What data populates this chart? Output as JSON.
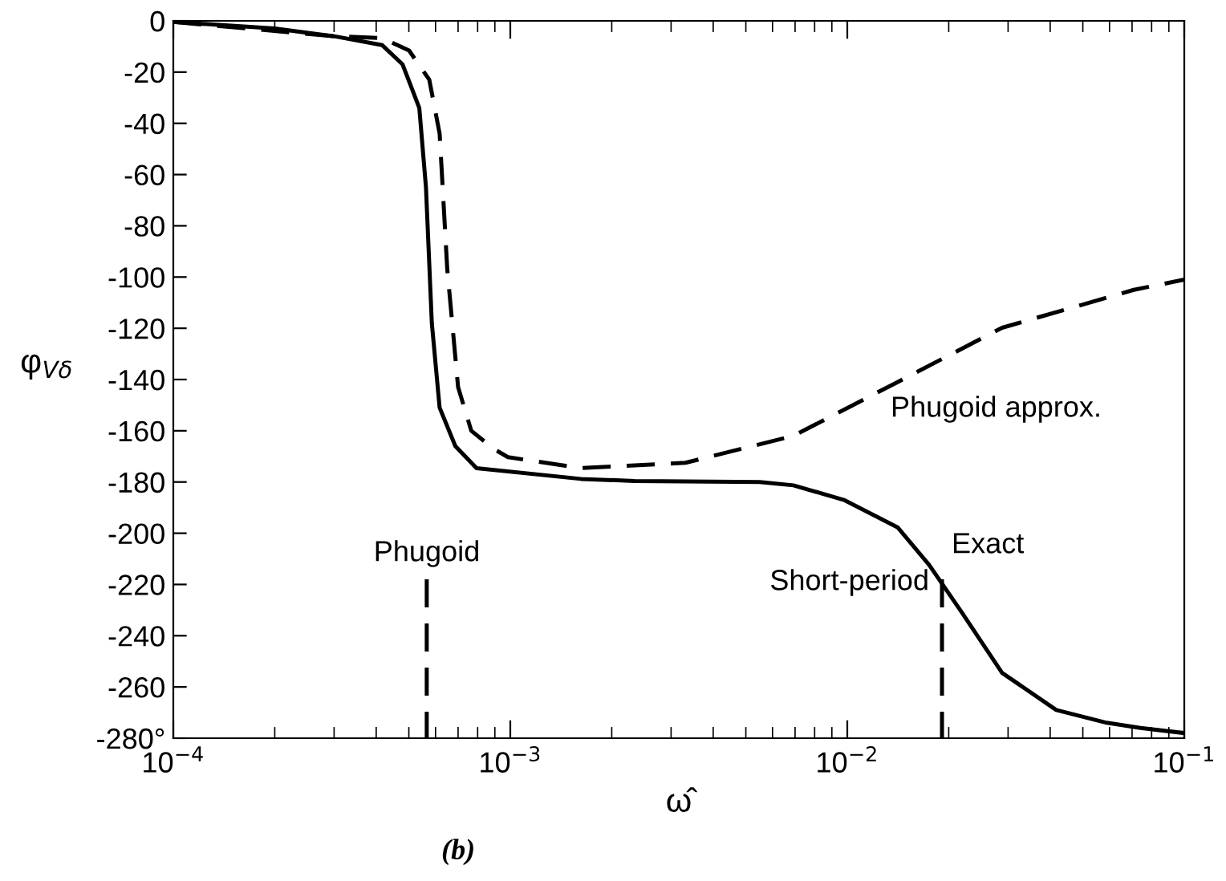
{
  "chart_data": {
    "type": "line",
    "xlabel": "ω̂",
    "ylabel": "φ$_{Vδ}$",
    "log": "x",
    "xlim": [
      0.0001,
      0.1
    ],
    "ylim": [
      -280,
      0
    ],
    "xticks": [
      {
        "value": 0.0001,
        "label": "10$^{−4}$"
      },
      {
        "value": 0.001,
        "label": "10$^{−3}$"
      },
      {
        "value": 0.01,
        "label": "10$^{−2}$"
      },
      {
        "value": 0.1,
        "label": "10$^{−1}$"
      }
    ],
    "yticks": [
      0,
      -20,
      -40,
      -60,
      -80,
      -100,
      -120,
      -140,
      -160,
      -180,
      -200,
      -220,
      -240,
      -260,
      {
        "value": -280,
        "label": "-280°"
      }
    ],
    "grid": false,
    "legend": false,
    "series": [
      {
        "color": "#000000",
        "line_style": "solid",
        "x": [
          0.0001,
          0.0002,
          0.0003,
          0.000417,
          0.000479,
          0.000537,
          0.000562,
          0.000585,
          0.000617,
          0.000687,
          0.000794,
          0.00162,
          0.00234,
          0.0055,
          0.00692,
          0.00977,
          0.0141,
          0.0175,
          0.0219,
          0.0288,
          0.0417,
          0.0589,
          0.0741,
          0.1
        ],
        "values": [
          -0.4,
          -3,
          -6,
          -9.5,
          -17,
          -34,
          -65,
          -118,
          -151,
          -166,
          -174.6,
          -178.8,
          -179.6,
          -180,
          -181.3,
          -187,
          -197.7,
          -212.4,
          -231,
          -254.5,
          -269,
          -274,
          -276,
          -278
        ]
      },
      {
        "color": "#000000",
        "line_style": "dashed",
        "x": [
          0.0001,
          0.0003,
          0.000417,
          0.000501,
          0.000575,
          0.000617,
          0.00065,
          0.0007,
          0.000766,
          0.000891,
          0.000984,
          0.00162,
          0.00331,
          0.00692,
          0.0141,
          0.0288,
          0.0708,
          0.1
        ],
        "values": [
          -0.4,
          -6,
          -6.7,
          -11.6,
          -23,
          -44,
          -96.8,
          -143,
          -160,
          -167,
          -170.3,
          -174.6,
          -172.5,
          -162,
          -141,
          -119.8,
          -105,
          -101
        ]
      },
      {
        "color": "#000000",
        "line_style": "dashed",
        "x": [
          0.000565,
          0.000565
        ],
        "values": [
          -218,
          -280
        ]
      },
      {
        "color": "#000000",
        "line_style": "dashed",
        "x": [
          0.0191,
          0.0191
        ],
        "values": [
          -218,
          -280
        ]
      }
    ],
    "annotations": [
      "Phugoid",
      "Short-period",
      "Exact",
      "Phugoid approx.",
      "(b)"
    ]
  }
}
